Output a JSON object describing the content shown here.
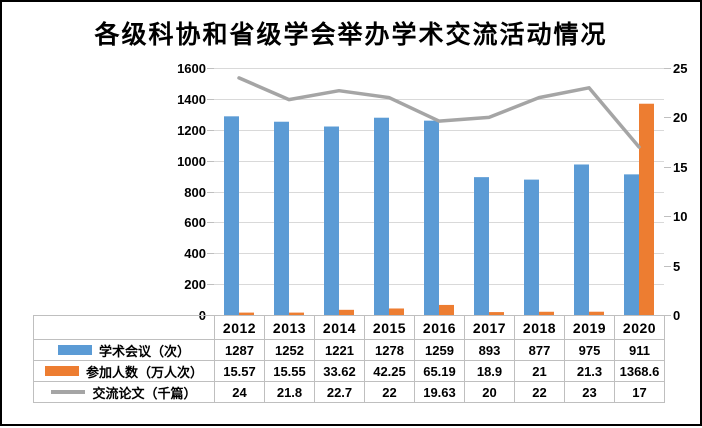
{
  "chart_data": {
    "type": "bar",
    "title": "各级科协和省级学会举办学术交流活动情况",
    "categories": [
      "2012",
      "2013",
      "2014",
      "2015",
      "2016",
      "2017",
      "2018",
      "2019",
      "2020"
    ],
    "series": [
      {
        "name": "学术会议（次）",
        "type": "bar",
        "axis": "left",
        "color": "#5B9BD5",
        "values": [
          1287,
          1252,
          1221,
          1278,
          1259,
          893,
          877,
          975,
          911
        ],
        "display": [
          "1287",
          "1252",
          "1221",
          "1278",
          "1259",
          "893",
          "877",
          "975",
          "911"
        ]
      },
      {
        "name": "参加人数（万人次）",
        "type": "bar",
        "axis": "left",
        "color": "#ED7D31",
        "values": [
          15.57,
          15.55,
          33.62,
          42.25,
          65.19,
          18.9,
          21,
          21.3,
          1368.6
        ],
        "display": [
          "15.57",
          "15.55",
          "33.62",
          "42.25",
          "65.19",
          "18.9",
          "21",
          "21.3",
          "1368.6"
        ]
      },
      {
        "name": "交流论文（千篇）",
        "type": "line",
        "axis": "right",
        "color": "#A5A5A5",
        "values": [
          24,
          21.8,
          22.7,
          22,
          19.63,
          20,
          22,
          23,
          17
        ],
        "display": [
          "24",
          "21.8",
          "22.7",
          "22",
          "19.63",
          "20",
          "22",
          "23",
          "17"
        ]
      }
    ],
    "left_axis": {
      "min": 0,
      "max": 1600,
      "step": 200
    },
    "right_axis": {
      "min": 0,
      "max": 25,
      "step": 5
    },
    "grid": true,
    "legend_position": "data-table-left"
  },
  "colors": {
    "bar_series_1": "#5B9BD5",
    "bar_series_2": "#ED7D31",
    "line_series": "#A5A5A5",
    "gridline": "#D9D9D9",
    "table_border": "#BFBFBF",
    "text": "#000000",
    "frame_border": "#000000",
    "background": "#FFFFFF"
  }
}
